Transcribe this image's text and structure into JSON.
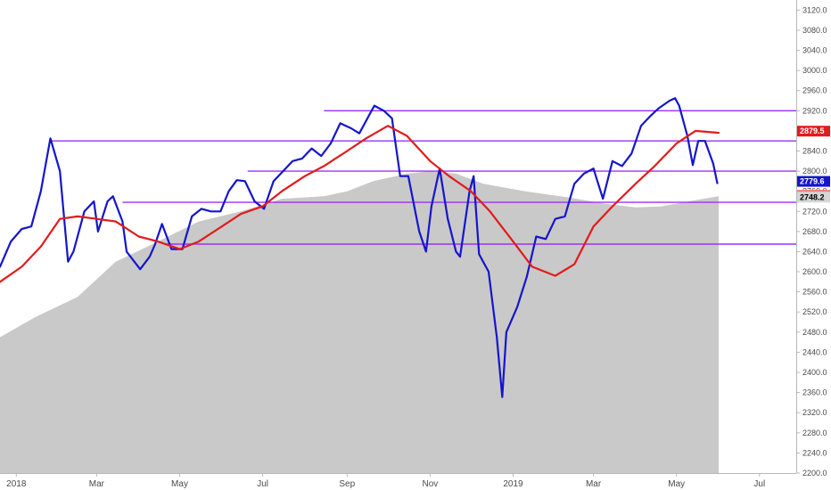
{
  "chart_data": {
    "type": "line",
    "title": "",
    "xlabel": "",
    "ylabel": "",
    "x_range": [
      "2017-12-20",
      "2019-07-28"
    ],
    "ylim": [
      2200,
      3140
    ],
    "y_ticks": [
      2200,
      2240,
      2280,
      2320,
      2360,
      2400,
      2440,
      2480,
      2520,
      2560,
      2600,
      2640,
      2680,
      2720,
      2760,
      2800,
      2840,
      2880,
      2920,
      2960,
      3000,
      3040,
      3080,
      3120
    ],
    "y_tick_labels": [
      "2200.0",
      "2240.0",
      "2280.0",
      "2320.0",
      "2360.0",
      "2400.0",
      "2440.0",
      "2480.0",
      "2520.0",
      "2560.0",
      "2600.0",
      "2640.0",
      "2680.0",
      "2720.0",
      "2760.0",
      "2800.0",
      "2840.0",
      "2880.0",
      "2920.0",
      "2960.0",
      "3000.0",
      "3040.0",
      "3080.0",
      "3120.0"
    ],
    "x_ticks": [
      {
        "date": "2018-01-01",
        "label": "2018"
      },
      {
        "date": "2018-03-01",
        "label": "Mar"
      },
      {
        "date": "2018-05-01",
        "label": "May"
      },
      {
        "date": "2018-07-01",
        "label": "Jul"
      },
      {
        "date": "2018-09-01",
        "label": "Sep"
      },
      {
        "date": "2018-11-01",
        "label": "Nov"
      },
      {
        "date": "2019-01-01",
        "label": "2019"
      },
      {
        "date": "2019-03-01",
        "label": "Mar"
      },
      {
        "date": "2019-05-01",
        "label": "May"
      },
      {
        "date": "2019-07-01",
        "label": "Jul"
      }
    ],
    "grid": false,
    "series": [
      {
        "color": "#1515cc",
        "points": [
          [
            "2017-12-20",
            2610
          ],
          [
            "2017-12-28",
            2660
          ],
          [
            "2018-01-05",
            2685
          ],
          [
            "2018-01-12",
            2690
          ],
          [
            "2018-01-19",
            2760
          ],
          [
            "2018-01-26",
            2865
          ],
          [
            "2018-02-02",
            2800
          ],
          [
            "2018-02-08",
            2620
          ],
          [
            "2018-02-12",
            2640
          ],
          [
            "2018-02-20",
            2720
          ],
          [
            "2018-02-27",
            2740
          ],
          [
            "2018-03-02",
            2680
          ],
          [
            "2018-03-09",
            2740
          ],
          [
            "2018-03-13",
            2750
          ],
          [
            "2018-03-20",
            2700
          ],
          [
            "2018-03-23",
            2640
          ],
          [
            "2018-04-02",
            2605
          ],
          [
            "2018-04-09",
            2630
          ],
          [
            "2018-04-13",
            2655
          ],
          [
            "2018-04-18",
            2695
          ],
          [
            "2018-04-25",
            2645
          ],
          [
            "2018-05-03",
            2645
          ],
          [
            "2018-05-10",
            2710
          ],
          [
            "2018-05-17",
            2725
          ],
          [
            "2018-05-24",
            2720
          ],
          [
            "2018-05-31",
            2720
          ],
          [
            "2018-06-06",
            2760
          ],
          [
            "2018-06-12",
            2782
          ],
          [
            "2018-06-18",
            2780
          ],
          [
            "2018-06-25",
            2740
          ],
          [
            "2018-07-02",
            2725
          ],
          [
            "2018-07-09",
            2780
          ],
          [
            "2018-07-16",
            2800
          ],
          [
            "2018-07-23",
            2820
          ],
          [
            "2018-07-30",
            2825
          ],
          [
            "2018-08-06",
            2845
          ],
          [
            "2018-08-13",
            2830
          ],
          [
            "2018-08-20",
            2855
          ],
          [
            "2018-08-27",
            2895
          ],
          [
            "2018-09-04",
            2885
          ],
          [
            "2018-09-10",
            2875
          ],
          [
            "2018-09-17",
            2910
          ],
          [
            "2018-09-21",
            2930
          ],
          [
            "2018-09-28",
            2920
          ],
          [
            "2018-10-04",
            2905
          ],
          [
            "2018-10-10",
            2790
          ],
          [
            "2018-10-16",
            2790
          ],
          [
            "2018-10-24",
            2680
          ],
          [
            "2018-10-29",
            2640
          ],
          [
            "2018-11-02",
            2730
          ],
          [
            "2018-11-08",
            2805
          ],
          [
            "2018-11-14",
            2705
          ],
          [
            "2018-11-20",
            2640
          ],
          [
            "2018-11-23",
            2630
          ],
          [
            "2018-11-30",
            2760
          ],
          [
            "2018-12-03",
            2790
          ],
          [
            "2018-12-07",
            2635
          ],
          [
            "2018-12-14",
            2600
          ],
          [
            "2018-12-20",
            2470
          ],
          [
            "2018-12-24",
            2351
          ],
          [
            "2018-12-27",
            2480
          ],
          [
            "2019-01-04",
            2530
          ],
          [
            "2019-01-11",
            2590
          ],
          [
            "2019-01-18",
            2670
          ],
          [
            "2019-01-25",
            2665
          ],
          [
            "2019-02-01",
            2705
          ],
          [
            "2019-02-08",
            2710
          ],
          [
            "2019-02-15",
            2775
          ],
          [
            "2019-02-22",
            2795
          ],
          [
            "2019-03-01",
            2805
          ],
          [
            "2019-03-08",
            2745
          ],
          [
            "2019-03-15",
            2820
          ],
          [
            "2019-03-22",
            2810
          ],
          [
            "2019-03-29",
            2835
          ],
          [
            "2019-04-05",
            2890
          ],
          [
            "2019-04-12",
            2910
          ],
          [
            "2019-04-18",
            2925
          ],
          [
            "2019-04-26",
            2940
          ],
          [
            "2019-04-30",
            2945
          ],
          [
            "2019-05-03",
            2930
          ],
          [
            "2019-05-09",
            2870
          ],
          [
            "2019-05-13",
            2812
          ],
          [
            "2019-05-17",
            2860
          ],
          [
            "2019-05-22",
            2860
          ],
          [
            "2019-05-28",
            2815
          ],
          [
            "2019-05-31",
            2776
          ]
        ]
      },
      {
        "color": "#e21b1b",
        "points": [
          [
            "2017-12-20",
            2580
          ],
          [
            "2018-01-05",
            2610
          ],
          [
            "2018-01-19",
            2650
          ],
          [
            "2018-02-02",
            2705
          ],
          [
            "2018-02-15",
            2710
          ],
          [
            "2018-03-01",
            2705
          ],
          [
            "2018-03-15",
            2700
          ],
          [
            "2018-04-01",
            2670
          ],
          [
            "2018-04-15",
            2660
          ],
          [
            "2018-05-01",
            2645
          ],
          [
            "2018-05-15",
            2660
          ],
          [
            "2018-06-01",
            2690
          ],
          [
            "2018-06-15",
            2715
          ],
          [
            "2018-07-01",
            2730
          ],
          [
            "2018-07-15",
            2760
          ],
          [
            "2018-08-01",
            2790
          ],
          [
            "2018-08-15",
            2810
          ],
          [
            "2018-09-01",
            2840
          ],
          [
            "2018-09-15",
            2865
          ],
          [
            "2018-10-01",
            2890
          ],
          [
            "2018-10-15",
            2870
          ],
          [
            "2018-11-01",
            2820
          ],
          [
            "2018-11-15",
            2790
          ],
          [
            "2018-12-01",
            2760
          ],
          [
            "2018-12-15",
            2720
          ],
          [
            "2019-01-01",
            2660
          ],
          [
            "2019-01-15",
            2610
          ],
          [
            "2019-02-01",
            2592
          ],
          [
            "2019-02-15",
            2615
          ],
          [
            "2019-03-01",
            2690
          ],
          [
            "2019-03-15",
            2730
          ],
          [
            "2019-04-01",
            2775
          ],
          [
            "2019-04-15",
            2810
          ],
          [
            "2019-05-01",
            2855
          ],
          [
            "2019-05-15",
            2880
          ],
          [
            "2019-06-01",
            2876
          ]
        ]
      }
    ],
    "area_series": {
      "color": "#c9c9c9",
      "points": [
        [
          "2017-12-20",
          2470
        ],
        [
          "2018-01-15",
          2510
        ],
        [
          "2018-02-15",
          2550
        ],
        [
          "2018-03-15",
          2620
        ],
        [
          "2018-04-15",
          2660
        ],
        [
          "2018-05-15",
          2700
        ],
        [
          "2018-06-15",
          2720
        ],
        [
          "2018-07-15",
          2745
        ],
        [
          "2018-08-15",
          2750
        ],
        [
          "2018-09-01",
          2760
        ],
        [
          "2018-09-20",
          2780
        ],
        [
          "2018-10-15",
          2795
        ],
        [
          "2018-11-01",
          2800
        ],
        [
          "2018-11-20",
          2795
        ],
        [
          "2018-12-10",
          2775
        ],
        [
          "2019-01-10",
          2760
        ],
        [
          "2019-02-10",
          2748
        ],
        [
          "2019-03-10",
          2735
        ],
        [
          "2019-04-01",
          2728
        ],
        [
          "2019-04-20",
          2730
        ],
        [
          "2019-05-10",
          2740
        ],
        [
          "2019-06-01",
          2750
        ]
      ]
    },
    "horizontal_lines": [
      {
        "value": 2920,
        "from": "2018-08-15",
        "to": "2019-07-28",
        "color": "#9b30ff"
      },
      {
        "value": 2860,
        "from": "2018-01-25",
        "to": "2019-07-28",
        "color": "#9b30ff"
      },
      {
        "value": 2800,
        "from": "2018-06-20",
        "to": "2019-07-28",
        "color": "#9b30ff"
      },
      {
        "value": 2738,
        "from": "2018-03-20",
        "to": "2019-07-28",
        "color": "#9b30ff"
      },
      {
        "value": 2655,
        "from": "2018-04-20",
        "to": "2019-07-28",
        "color": "#9b30ff"
      }
    ],
    "price_labels": [
      {
        "value": 2879.5,
        "label": "2879.5",
        "bg": "#e21b1b",
        "fg": "#ffffff"
      },
      {
        "value": 2779.6,
        "label": "2779.6",
        "bg": "#1515cc",
        "fg": "#ffffff"
      },
      {
        "value": 2752.1,
        "label": "2752.1",
        "bg": "#f08080",
        "fg": "#000000"
      },
      {
        "value": 2748.2,
        "label": "2748.2",
        "bg": "#d6d6d6",
        "fg": "#000000"
      }
    ]
  }
}
